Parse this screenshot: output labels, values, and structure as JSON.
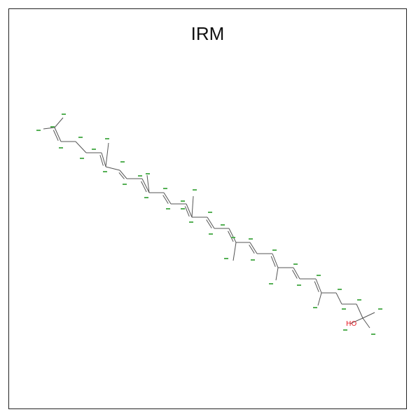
{
  "title": "IRM",
  "molecule": {
    "hetero_atom": "HO",
    "bond_color": "#555555",
    "label_color": "#55b055",
    "hetero_color": "#e8202a"
  }
}
